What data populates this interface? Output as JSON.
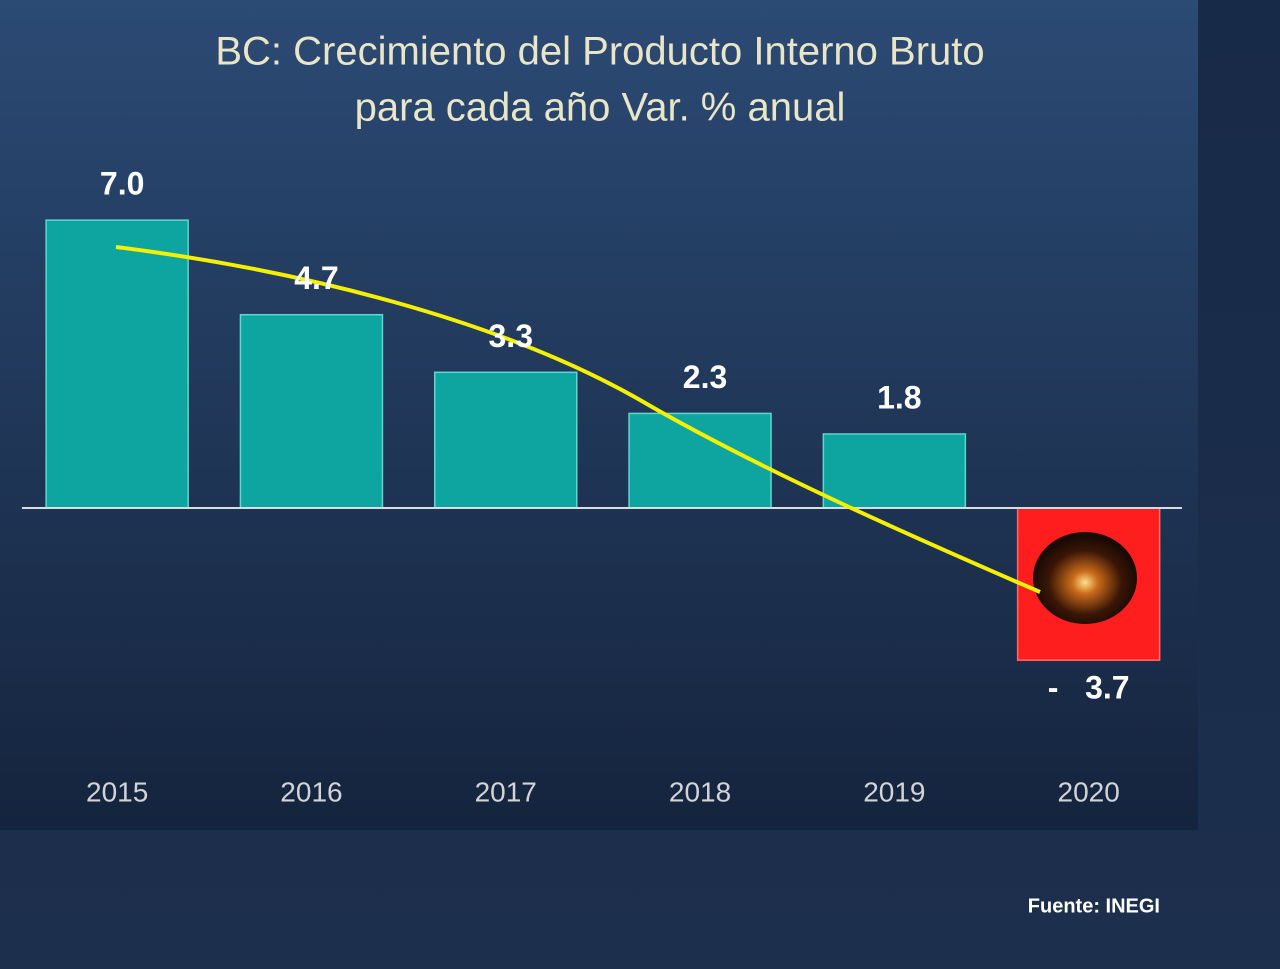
{
  "chart_data": {
    "type": "bar",
    "title": [
      "BC: Crecimiento del Producto Interno Bruto",
      "para cada año  Var. % anual"
    ],
    "categories": [
      "2015",
      "2016",
      "2017",
      "2018",
      "2019",
      "2020"
    ],
    "values": [
      7.0,
      4.7,
      3.3,
      2.3,
      1.8,
      -3.7
    ],
    "value_labels": [
      "7.0",
      "4.7",
      "3.3",
      "2.3",
      "1.8",
      "-   3.7"
    ],
    "colors": [
      "#0ea5a0",
      "#0ea5a0",
      "#0ea5a0",
      "#0ea5a0",
      "#0ea5a0",
      "#ff1e1e"
    ],
    "source": "Fuente: INEGI"
  }
}
